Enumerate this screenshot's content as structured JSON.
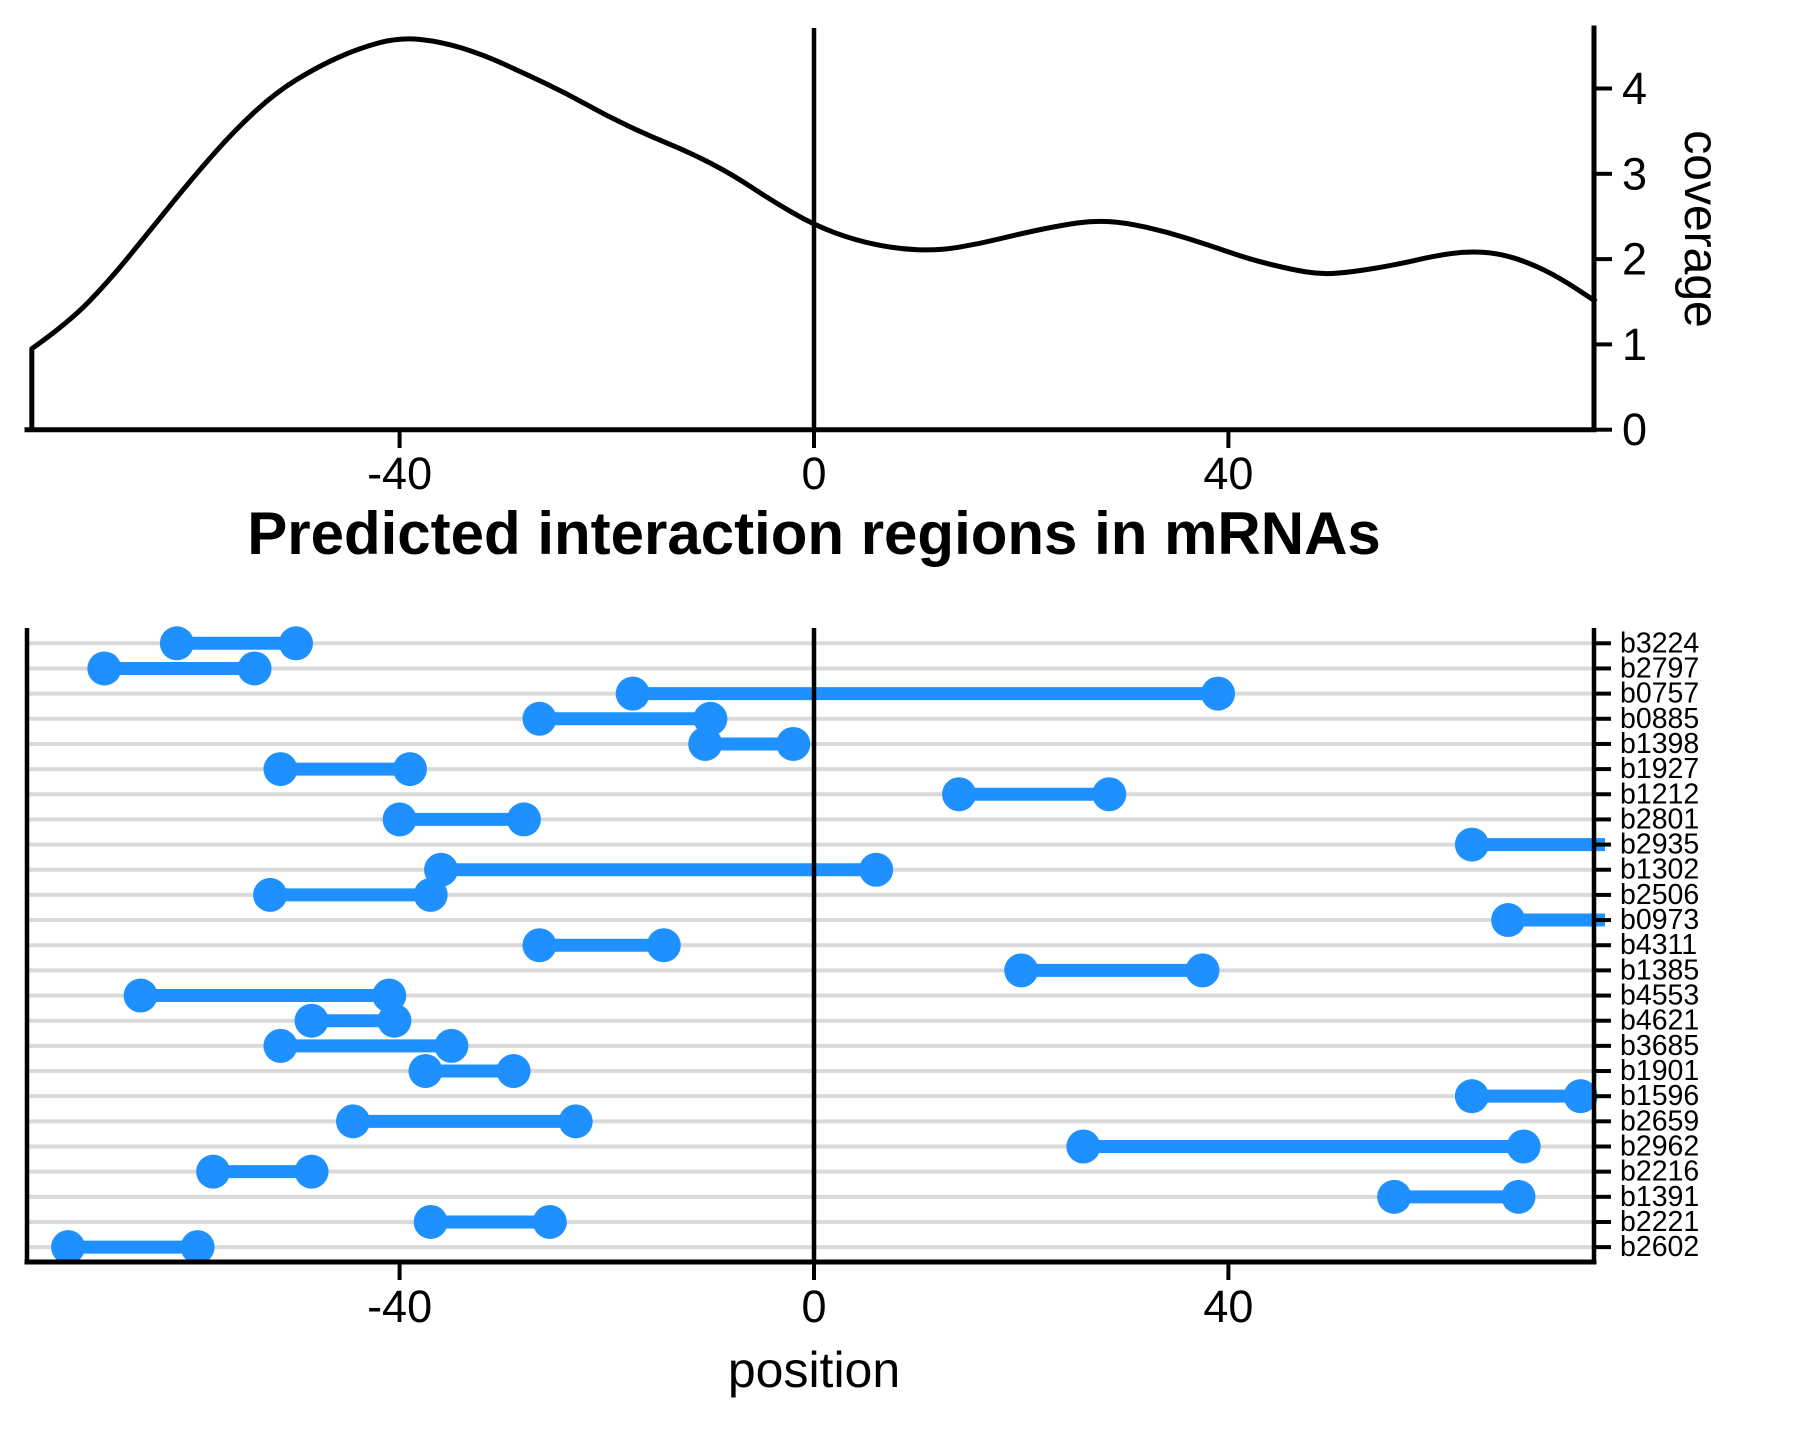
{
  "colors": {
    "segment_blue": "#1E90FF",
    "gridline_gray": "#D9D9D9",
    "axis_black": "#000000",
    "background": "#FFFFFF"
  },
  "labels": {
    "title": "Predicted interaction regions in mRNAs",
    "xlabel": "position",
    "ylabel_top": "coverage"
  },
  "chart_data": [
    {
      "type": "line",
      "title": "",
      "ylabel": "coverage",
      "xlabel": "",
      "x_ticks": [
        -40,
        0,
        40
      ],
      "y_ticks": [
        0,
        1,
        2,
        3,
        4
      ],
      "xlim": [
        -76,
        75.5
      ],
      "ylim": [
        0,
        4.7
      ],
      "vline_x": 0,
      "grid": false,
      "points": [
        [
          -75.5,
          0.95
        ],
        [
          -72,
          1.25
        ],
        [
          -68,
          1.75
        ],
        [
          -64,
          2.35
        ],
        [
          -60,
          2.95
        ],
        [
          -56,
          3.5
        ],
        [
          -52,
          3.95
        ],
        [
          -48,
          4.25
        ],
        [
          -44,
          4.47
        ],
        [
          -40,
          4.6
        ],
        [
          -36,
          4.55
        ],
        [
          -32,
          4.4
        ],
        [
          -28,
          4.18
        ],
        [
          -24,
          3.95
        ],
        [
          -20,
          3.68
        ],
        [
          -16,
          3.45
        ],
        [
          -12,
          3.25
        ],
        [
          -8,
          3.0
        ],
        [
          -4,
          2.68
        ],
        [
          0,
          2.4
        ],
        [
          4,
          2.22
        ],
        [
          8,
          2.12
        ],
        [
          12,
          2.1
        ],
        [
          16,
          2.18
        ],
        [
          20,
          2.3
        ],
        [
          24,
          2.4
        ],
        [
          27,
          2.45
        ],
        [
          30,
          2.43
        ],
        [
          34,
          2.32
        ],
        [
          38,
          2.17
        ],
        [
          42,
          2.0
        ],
        [
          46,
          1.88
        ],
        [
          49,
          1.82
        ],
        [
          52,
          1.85
        ],
        [
          56,
          1.93
        ],
        [
          60,
          2.04
        ],
        [
          63,
          2.09
        ],
        [
          66,
          2.07
        ],
        [
          69,
          1.96
        ],
        [
          72,
          1.78
        ],
        [
          75.5,
          1.5
        ]
      ],
      "left_edge_drop_to_zero": true
    },
    {
      "type": "segment",
      "title": "Predicted interaction regions in mRNAs",
      "xlabel": "position",
      "x_ticks": [
        -40,
        0,
        40
      ],
      "xlim": [
        -76,
        75.5
      ],
      "vline_x": 0,
      "grid": true,
      "rows": [
        {
          "label": "b3224",
          "start": -61.5,
          "end": -50,
          "clipped_right": false
        },
        {
          "label": "b2797",
          "start": -68.5,
          "end": -54,
          "clipped_right": false
        },
        {
          "label": "b0757",
          "start": -17.5,
          "end": 39,
          "clipped_right": false
        },
        {
          "label": "b0885",
          "start": -26.5,
          "end": -10,
          "clipped_right": false
        },
        {
          "label": "b1398",
          "start": -10.5,
          "end": -2,
          "clipped_right": false
        },
        {
          "label": "b1927",
          "start": -51.5,
          "end": -39,
          "clipped_right": false
        },
        {
          "label": "b1212",
          "start": 14,
          "end": 28.5,
          "clipped_right": false
        },
        {
          "label": "b2801",
          "start": -40,
          "end": -28,
          "clipped_right": false
        },
        {
          "label": "b2935",
          "start": 63.5,
          "end": 75.7,
          "clipped_right": true
        },
        {
          "label": "b1302",
          "start": -36,
          "end": 6,
          "clipped_right": false
        },
        {
          "label": "b2506",
          "start": -52.5,
          "end": -37,
          "clipped_right": false
        },
        {
          "label": "b0973",
          "start": 67,
          "end": 75.7,
          "clipped_right": true
        },
        {
          "label": "b4311",
          "start": -26.5,
          "end": -14.5,
          "clipped_right": false
        },
        {
          "label": "b1385",
          "start": 20,
          "end": 37.5,
          "clipped_right": false
        },
        {
          "label": "b4553",
          "start": -65,
          "end": -41,
          "clipped_right": false
        },
        {
          "label": "b4621",
          "start": -48.5,
          "end": -40.5,
          "clipped_right": false
        },
        {
          "label": "b3685",
          "start": -51.5,
          "end": -35,
          "clipped_right": false
        },
        {
          "label": "b1901",
          "start": -37.5,
          "end": -29,
          "clipped_right": false
        },
        {
          "label": "b1596",
          "start": 63.5,
          "end": 74,
          "clipped_right": false
        },
        {
          "label": "b2659",
          "start": -44.5,
          "end": -23,
          "clipped_right": false
        },
        {
          "label": "b2962",
          "start": 26,
          "end": 68.5,
          "clipped_right": false
        },
        {
          "label": "b2216",
          "start": -58,
          "end": -48.5,
          "clipped_right": false
        },
        {
          "label": "b1391",
          "start": 56,
          "end": 68,
          "clipped_right": false
        },
        {
          "label": "b2221",
          "start": -37,
          "end": -25.5,
          "clipped_right": false
        },
        {
          "label": "b2602",
          "start": -72,
          "end": -59.5,
          "clipped_right": false
        }
      ]
    }
  ]
}
